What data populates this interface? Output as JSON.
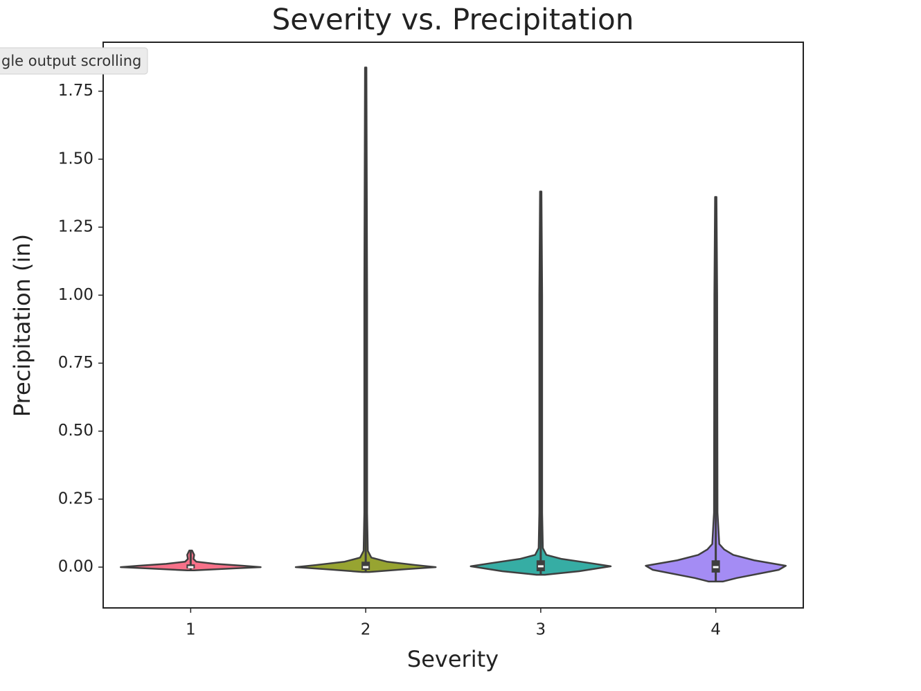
{
  "tooltip": "gle output scrolling",
  "chart_data": {
    "type": "violin",
    "title": "Severity vs. Precipitation",
    "x_label": "Severity",
    "y_label": "Precipitation (in)",
    "categories": [
      "1",
      "2",
      "3",
      "4"
    ],
    "ylim": [
      -0.15,
      1.93
    ],
    "yticks": [
      {
        "value": 0,
        "label": "0.00"
      },
      {
        "value": 0.25,
        "label": "0.25"
      },
      {
        "value": 0.5,
        "label": "0.50"
      },
      {
        "value": 0.75,
        "label": "0.75"
      },
      {
        "value": 1,
        "label": "1.00"
      },
      {
        "value": 1.25,
        "label": "1.25"
      },
      {
        "value": 1.5,
        "label": "1.50"
      },
      {
        "value": 1.75,
        "label": "1.75"
      }
    ],
    "violins": [
      {
        "color": "#f77189",
        "min": -0.012,
        "max": 0.061,
        "q1": -0.005,
        "median": 0,
        "q3": 0.01,
        "profile_y": [
          -0.012,
          -0.005,
          0,
          0.005,
          0.012,
          0.02,
          0.03,
          0.045,
          0.061
        ],
        "profile_density": [
          0.05,
          0.6,
          1.0,
          0.75,
          0.35,
          0.08,
          0.04,
          0.05,
          0.02
        ]
      },
      {
        "color": "#97a431",
        "min": -0.018,
        "max": 1.837,
        "q1": -0.01,
        "median": 0,
        "q3": 0.02,
        "profile_y": [
          -0.018,
          -0.008,
          0,
          0.008,
          0.02,
          0.035,
          0.06,
          0.2,
          1.0,
          1.837
        ],
        "profile_density": [
          0.05,
          0.55,
          1.0,
          0.7,
          0.3,
          0.08,
          0.03,
          0.02,
          0.02,
          0.01
        ]
      },
      {
        "color": "#36ada4",
        "min": -0.028,
        "max": 1.381,
        "q1": -0.015,
        "median": 0.003,
        "q3": 0.025,
        "profile_y": [
          -0.028,
          -0.015,
          0.003,
          0.015,
          0.03,
          0.045,
          0.07,
          0.2,
          1.0,
          1.381
        ],
        "profile_density": [
          0.06,
          0.55,
          1.0,
          0.7,
          0.3,
          0.08,
          0.03,
          0.02,
          0.02,
          0.01
        ]
      },
      {
        "color": "#a48cf4",
        "min": -0.053,
        "max": 1.361,
        "q1": -0.02,
        "median": 0,
        "q3": 0.025,
        "profile_y": [
          -0.053,
          -0.04,
          -0.01,
          0.005,
          0.025,
          0.045,
          0.065,
          0.085,
          0.2,
          1.0,
          1.361
        ],
        "profile_density": [
          0.1,
          0.3,
          0.9,
          1.0,
          0.55,
          0.25,
          0.12,
          0.05,
          0.025,
          0.02,
          0.01
        ]
      }
    ]
  }
}
